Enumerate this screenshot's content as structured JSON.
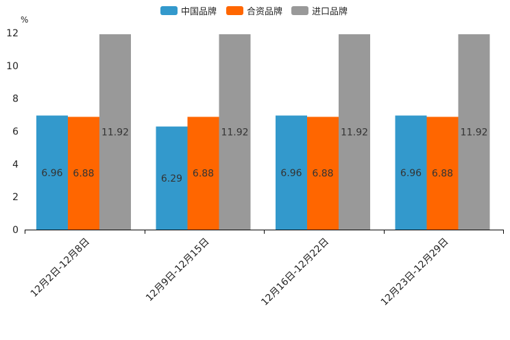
{
  "chart_data": {
    "type": "bar",
    "ylabel": "%",
    "ylim": [
      0,
      12
    ],
    "yticks": [
      0,
      2,
      4,
      6,
      8,
      10,
      12
    ],
    "categories": [
      "12月2日-12月8日",
      "12月9日-12月15日",
      "12月16日-12月22日",
      "12月23日-12月29日"
    ],
    "series": [
      {
        "name": "中国品牌",
        "color": "#3399cc",
        "values": [
          6.96,
          6.29,
          6.96,
          6.96
        ],
        "labels": [
          "6.96",
          "6.29",
          "6.96",
          "6.96"
        ]
      },
      {
        "name": "合资品牌",
        "color": "#ff6600",
        "values": [
          6.88,
          6.88,
          6.88,
          6.88
        ],
        "labels": [
          "6.88",
          "6.88",
          "6.88",
          "6.88"
        ]
      },
      {
        "name": "进口品牌",
        "color": "#999999",
        "values": [
          11.92,
          11.92,
          11.92,
          11.92
        ],
        "labels": [
          "11.92",
          "11.92",
          "11.92",
          "11.92"
        ]
      }
    ],
    "legend_position": "top-center",
    "grid": false
  }
}
